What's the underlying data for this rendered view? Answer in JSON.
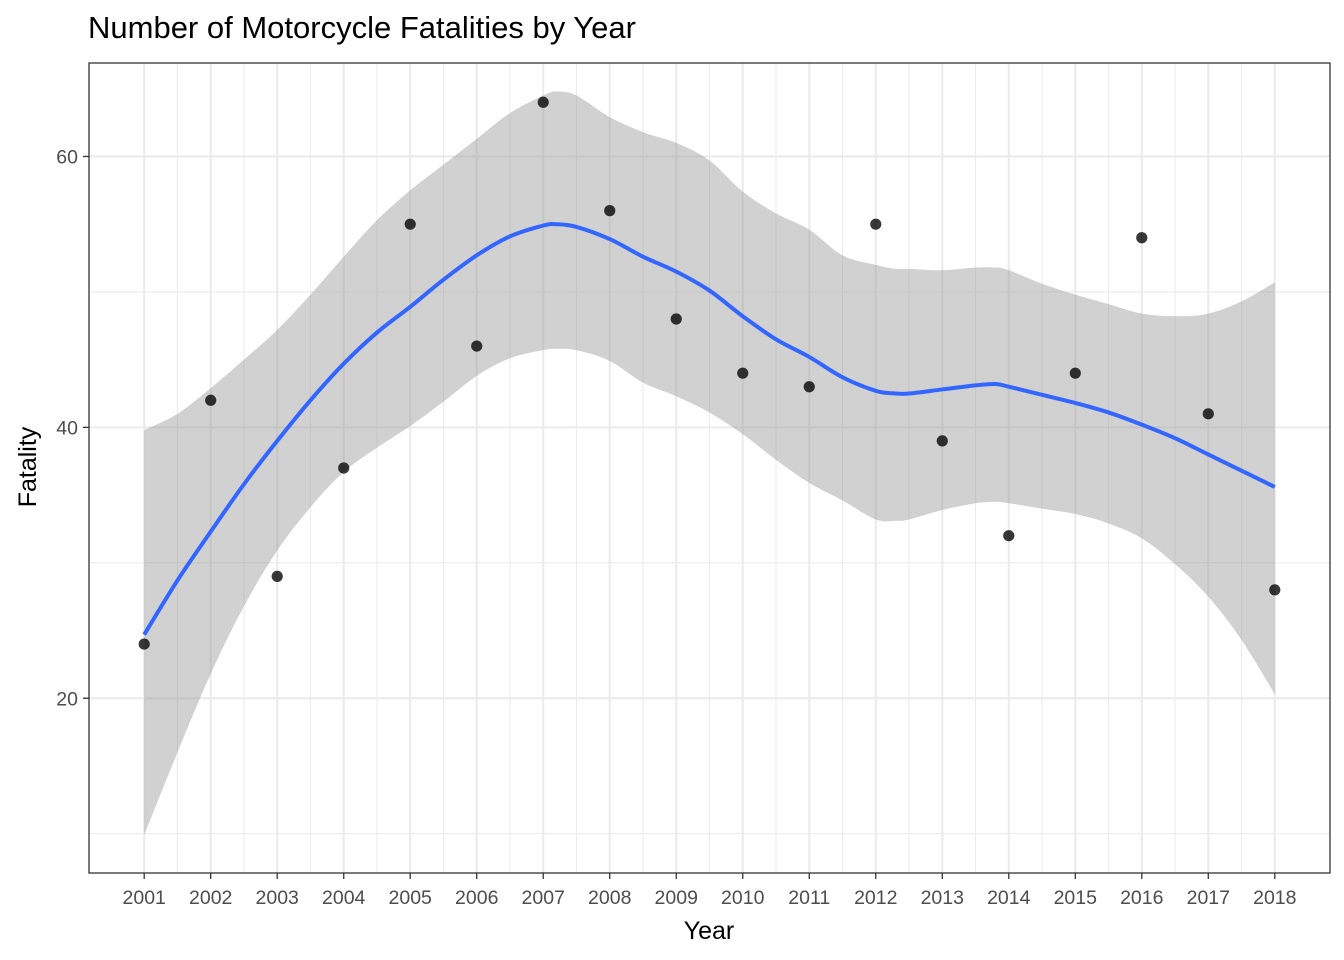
{
  "chart_data": {
    "type": "scatter",
    "title": "Number of Motorcycle Fatalities by Year",
    "xlabel": "Year",
    "ylabel": "Fatality",
    "x": [
      2001,
      2002,
      2003,
      2004,
      2005,
      2006,
      2007,
      2008,
      2009,
      2010,
      2011,
      2012,
      2013,
      2014,
      2015,
      2016,
      2017,
      2018
    ],
    "x_tick_labels": [
      "2001",
      "2002",
      "2003",
      "2004",
      "2005",
      "2006",
      "2007",
      "2008",
      "2009",
      "2010",
      "2011",
      "2012",
      "2013",
      "2014",
      "2015",
      "2016",
      "2017",
      "2018"
    ],
    "series": [
      {
        "type": "scatter",
        "values": [
          24,
          42,
          29,
          37,
          55,
          46,
          64,
          56,
          48,
          44,
          43,
          55,
          39,
          32,
          44,
          54,
          41,
          28
        ]
      },
      {
        "type": "smooth",
        "method": "loess",
        "x": [
          2001,
          2001.5,
          2002,
          2002.5,
          2003,
          2003.5,
          2004,
          2004.5,
          2005,
          2005.5,
          2006,
          2006.5,
          2007,
          2007.2,
          2007.5,
          2008,
          2008.5,
          2009,
          2009.5,
          2010,
          2010.5,
          2011,
          2011.5,
          2012,
          2012.3,
          2012.5,
          2013,
          2013.5,
          2013.8,
          2014,
          2014.5,
          2015,
          2015.5,
          2016,
          2016.5,
          2017,
          2017.5,
          2018
        ],
        "values": [
          24.7,
          28.7,
          32.3,
          35.8,
          39.0,
          42.0,
          44.7,
          47.0,
          48.9,
          50.9,
          52.7,
          54.1,
          54.9,
          55.0,
          54.8,
          53.9,
          52.6,
          51.5,
          50.1,
          48.2,
          46.5,
          45.2,
          43.7,
          42.7,
          42.5,
          42.5,
          42.8,
          43.1,
          43.2,
          43.0,
          42.4,
          41.8,
          41.1,
          40.2,
          39.2,
          38.0,
          36.8,
          35.6
        ],
        "ci_lower": [
          9.9,
          16.0,
          21.8,
          26.8,
          30.9,
          34.1,
          36.7,
          38.5,
          40.1,
          41.9,
          43.8,
          45.1,
          45.7,
          45.8,
          45.7,
          44.9,
          43.3,
          42.3,
          41.1,
          39.5,
          37.6,
          35.9,
          34.6,
          33.2,
          33.1,
          33.2,
          33.9,
          34.4,
          34.5,
          34.4,
          34.0,
          33.6,
          32.9,
          31.8,
          29.9,
          27.5,
          24.3,
          20.3
        ],
        "ci_upper": [
          39.8,
          41.0,
          42.9,
          45.0,
          47.2,
          49.8,
          52.6,
          55.3,
          57.5,
          59.4,
          61.3,
          63.2,
          64.5,
          64.8,
          64.5,
          62.9,
          61.8,
          61.0,
          59.7,
          57.4,
          55.8,
          54.6,
          52.7,
          52.0,
          51.7,
          51.7,
          51.6,
          51.8,
          51.8,
          51.6,
          50.6,
          49.8,
          49.1,
          48.4,
          48.2,
          48.4,
          49.3,
          50.7
        ]
      }
    ],
    "xlim": [
      2000.17,
      2018.83
    ],
    "ylim": [
      7.1,
      66.9
    ],
    "y_ticks": [
      20,
      40,
      60
    ],
    "y_minor_ticks": [
      10,
      30,
      50
    ],
    "grid": true,
    "legend": "none",
    "colors": {
      "points": "#000000",
      "smooth_line": "#3366FF",
      "ci_band": "#999999",
      "grid": "#EBEBEB",
      "panel_border": "#333333",
      "tick_label": "#4D4D4D"
    }
  }
}
